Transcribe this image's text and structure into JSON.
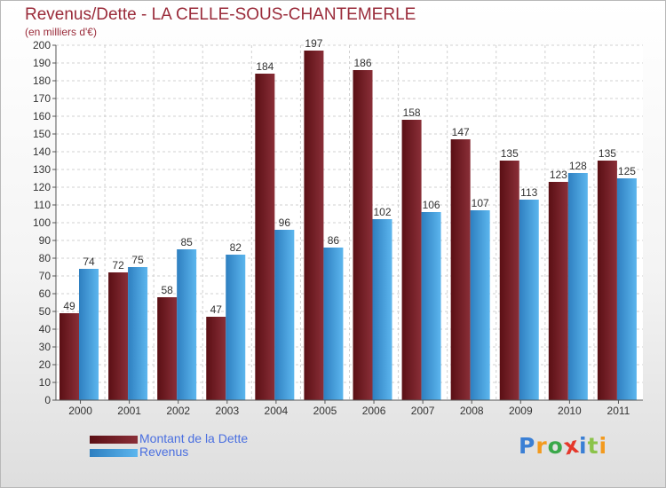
{
  "chart_data": {
    "type": "bar",
    "title": "Revenus/Dette - LA CELLE-SOUS-CHANTEMERLE",
    "subtitle": "(en milliers d'€)",
    "categories": [
      "2000",
      "2001",
      "2002",
      "2003",
      "2004",
      "2005",
      "2006",
      "2007",
      "2008",
      "2009",
      "2010",
      "2011"
    ],
    "series": [
      {
        "name": "Montant de la Dette",
        "color": "#7a1c24",
        "values": [
          49,
          72,
          58,
          47,
          184,
          197,
          186,
          158,
          147,
          135,
          123,
          135
        ]
      },
      {
        "name": "Revenus",
        "color": "#4aa8e6",
        "values": [
          74,
          75,
          85,
          82,
          96,
          86,
          102,
          106,
          107,
          113,
          128,
          125
        ]
      }
    ],
    "ylim": [
      0,
      200
    ],
    "ytick_step": 10,
    "grid": true,
    "legend": "bottom-left"
  },
  "logo": {
    "text": "Proxiti",
    "colors": [
      "#3a7fd5",
      "#f39a1e",
      "#3aa84a",
      "#e5382b",
      "#3a7fd5",
      "#8bc34a",
      "#f39a1e"
    ]
  }
}
